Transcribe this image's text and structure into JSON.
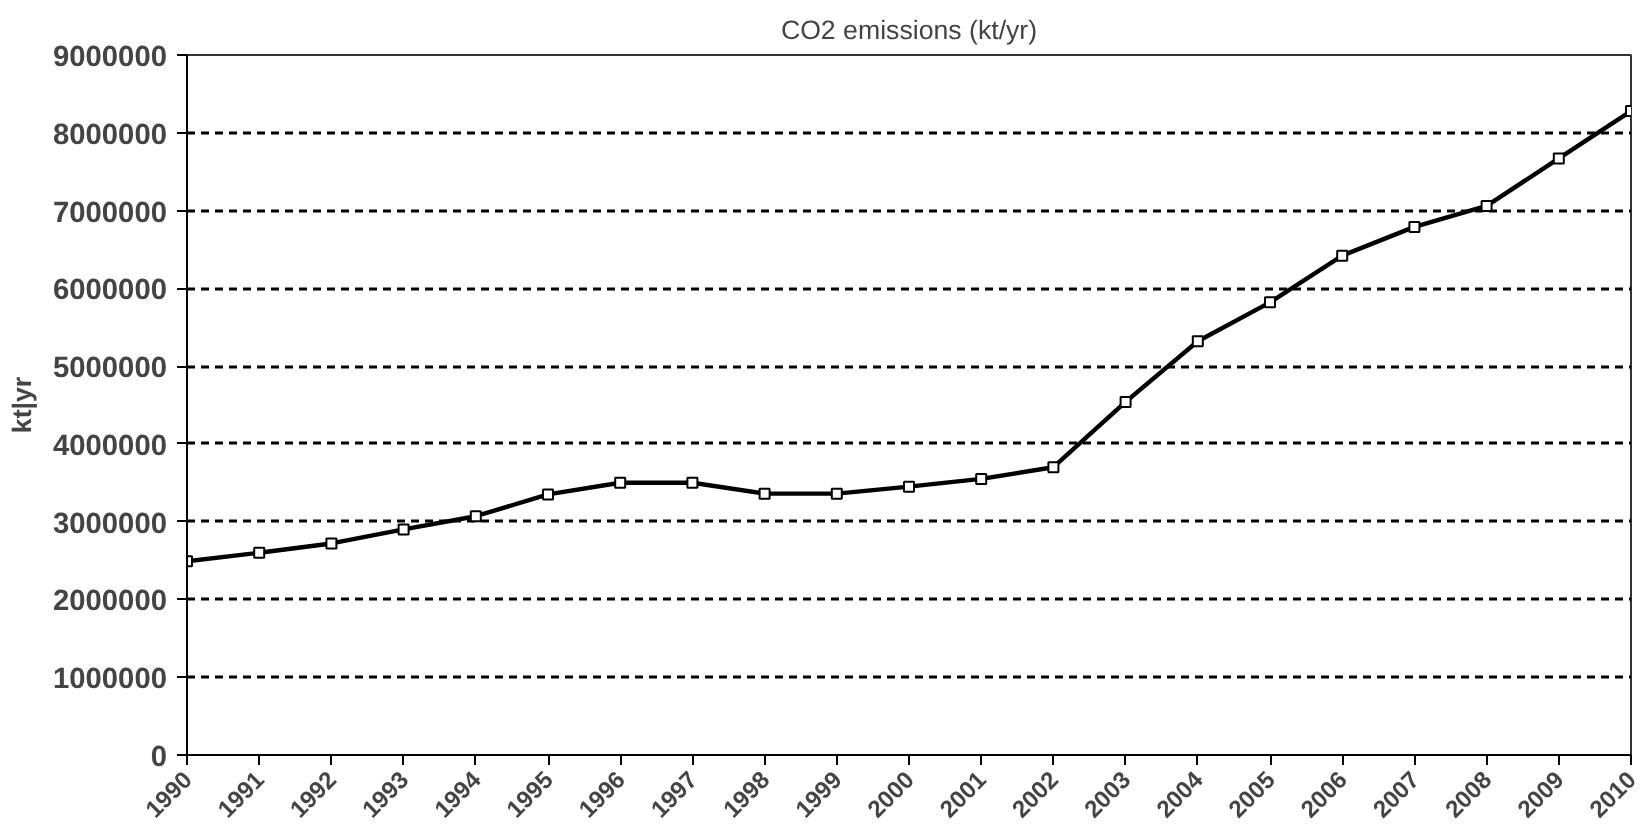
{
  "chart_data": {
    "type": "line",
    "title": "CO2 emissions (kt/yr)",
    "ylabel": "kt|yr",
    "categories": [
      "1990",
      "1991",
      "1992",
      "1993",
      "1994",
      "1995",
      "1996",
      "1997",
      "1998",
      "1999",
      "2000",
      "2001",
      "2002",
      "2003",
      "2004",
      "2005",
      "2006",
      "2007",
      "2008",
      "2009",
      "2010"
    ],
    "series": [
      {
        "color": "#000000",
        "values": [
          2490000,
          2600000,
          2720000,
          2900000,
          3070000,
          3350000,
          3500000,
          3500000,
          3360000,
          3360000,
          3450000,
          3550000,
          3700000,
          4540000,
          5320000,
          5820000,
          6420000,
          6790000,
          7060000,
          7670000,
          8280000
        ]
      }
    ],
    "ylim": [
      0,
      9000000
    ],
    "yticks": [
      0,
      1000000,
      2000000,
      3000000,
      4000000,
      5000000,
      6000000,
      7000000,
      8000000,
      9000000
    ],
    "grid": "y",
    "marker": "square",
    "line_style": "solid"
  }
}
